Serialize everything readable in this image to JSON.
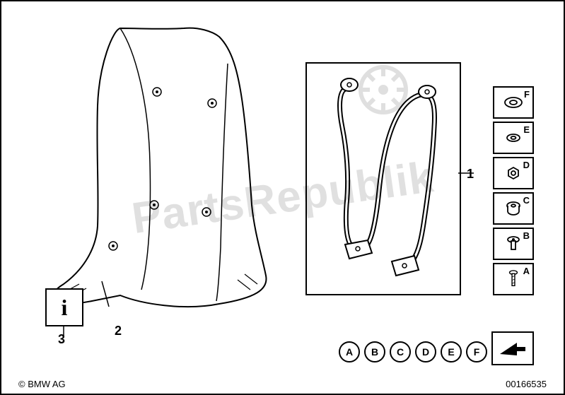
{
  "copyright": "© BMW AG",
  "doc_id": "00166535",
  "watermark_text": "PartsRepublik",
  "callouts": {
    "bracket": "1",
    "windshield": "2",
    "info": "3"
  },
  "info_symbol": "i",
  "hardware": [
    {
      "letter": "F",
      "type": "washer_large"
    },
    {
      "letter": "E",
      "type": "washer_small"
    },
    {
      "letter": "D",
      "type": "nut"
    },
    {
      "letter": "C",
      "type": "grommet"
    },
    {
      "letter": "B",
      "type": "screw_short"
    },
    {
      "letter": "A",
      "type": "screw_long"
    }
  ],
  "ref_letters": [
    "A",
    "B",
    "C",
    "D",
    "E",
    "F"
  ],
  "diagram": {
    "stroke": "#000000",
    "fill": "#ffffff",
    "stroke_width": 2
  }
}
